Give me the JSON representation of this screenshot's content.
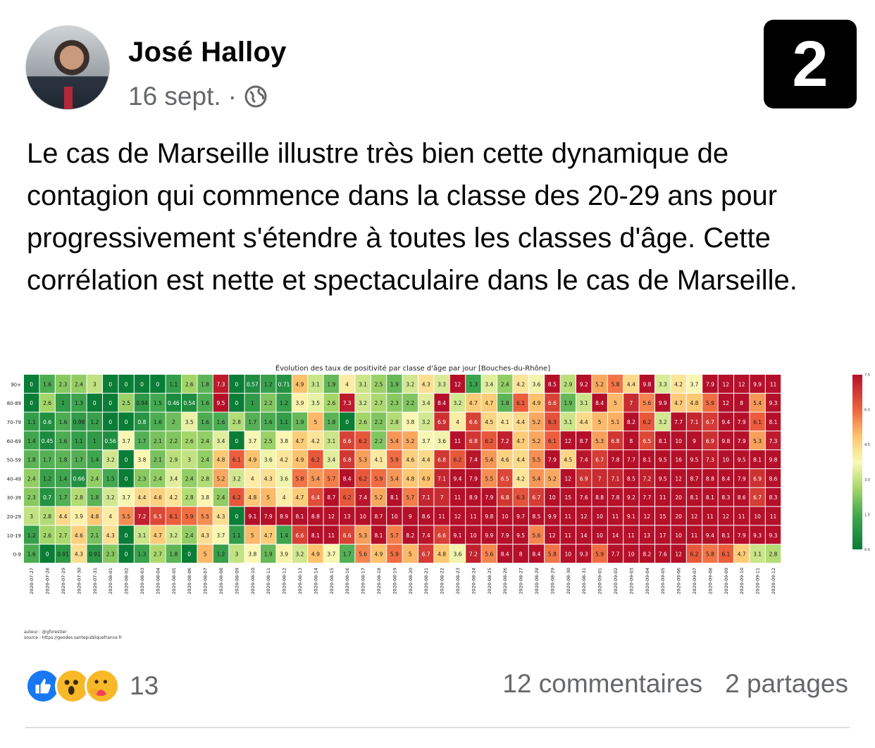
{
  "post": {
    "author": "José Halloy",
    "date": "16 sept.",
    "separator": "·",
    "audience_icon": "globe-icon",
    "badge_number": "2",
    "text": "Le cas de Marseille illustre très bien cette dynamique de contagion qui commence dans la classe des 20-29 ans pour progressivement s'étendre à toutes les classes d'âge. Cette corrélation est nette et spectaculaire dans le cas de Marseille."
  },
  "footer": {
    "reaction_icons": [
      "like-icon",
      "wow-icon",
      "care-icon"
    ],
    "reaction_count": "13",
    "comments": "12 commentaires",
    "shares": "2 partages"
  },
  "colors": {
    "low": "#0a7d36",
    "mid": "#fbf9b6",
    "high": "#b5102a",
    "text_secondary": "#65676b"
  },
  "chart_data": {
    "type": "heatmap",
    "title": "Évolution des taux de positivité par classe d'âge par jour [Bouches-du-Rhône]",
    "credits": [
      "auteur : @gforestier",
      "source : https://geodes.santepubliquefrance.fr"
    ],
    "rows": [
      "90+",
      "80-89",
      "70-79",
      "60-69",
      "50-59",
      "40-49",
      "30-39",
      "20-29",
      "10-19",
      "0-9"
    ],
    "columns": [
      "2020-07-27",
      "2020-07-28",
      "2020-07-29",
      "2020-07-30",
      "2020-07-31",
      "2020-08-01",
      "2020-08-02",
      "2020-08-03",
      "2020-08-04",
      "2020-08-05",
      "2020-08-06",
      "2020-08-07",
      "2020-08-08",
      "2020-08-09",
      "2020-08-10",
      "2020-08-11",
      "2020-08-12",
      "2020-08-13",
      "2020-08-14",
      "2020-08-15",
      "2020-08-16",
      "2020-08-17",
      "2020-08-18",
      "2020-08-19",
      "2020-08-20",
      "2020-08-21",
      "2020-08-22",
      "2020-08-23",
      "2020-08-24",
      "2020-08-25",
      "2020-08-26",
      "2020-08-27",
      "2020-08-28",
      "2020-08-29",
      "2020-08-30",
      "2020-08-31",
      "2020-09-01",
      "2020-09-02",
      "2020-09-03",
      "2020-09-04",
      "2020-09-05",
      "2020-09-06",
      "2020-09-07",
      "2020-09-08",
      "2020-09-09",
      "2020-09-10",
      "2020-09-11",
      "2020-09-12"
    ],
    "values": [
      [
        0,
        1.6,
        2.3,
        2.4,
        3,
        0,
        0,
        0,
        0,
        1.1,
        2.6,
        1.8,
        7.3,
        0,
        0.57,
        1.2,
        0.71,
        4.9,
        3.1,
        1.9,
        4,
        3.1,
        2.5,
        1.9,
        3.2,
        4.3,
        3.3,
        12,
        1.3,
        3.4,
        2.4,
        4.2,
        3.6,
        8.5,
        2.9,
        9.2,
        5.2,
        5.8,
        4.4,
        9.8,
        3.3,
        4.2,
        3.7,
        7.9,
        12,
        12,
        9.9,
        11
      ],
      [
        0,
        2.6,
        1,
        1.3,
        0,
        0,
        2.5,
        0.94,
        1.5,
        0.46,
        0.54,
        1.6,
        9.5,
        0,
        1,
        2.2,
        1.2,
        3.9,
        3.5,
        2.6,
        7.3,
        3.2,
        2.7,
        2.3,
        2.2,
        3.4,
        8.4,
        3.2,
        4.7,
        4.7,
        1.8,
        6.1,
        4.9,
        6.6,
        1.9,
        3.1,
        8.4,
        5,
        7,
        5.6,
        9.9,
        4.7,
        4.8,
        5.9,
        12,
        8,
        5.4,
        9.3
      ],
      [
        1.1,
        0.6,
        1.6,
        0.98,
        1.2,
        0,
        0,
        0.8,
        1.6,
        2,
        3.5,
        1.6,
        1.6,
        2.8,
        1.7,
        1.6,
        1.1,
        1.9,
        5,
        1.8,
        0,
        2.6,
        2.2,
        2.8,
        3.8,
        3.2,
        6.9,
        4,
        6.6,
        4.5,
        4.1,
        4.4,
        5.2,
        6.3,
        3.1,
        4.4,
        5,
        5.1,
        8.2,
        6.2,
        3.2,
        7.7,
        7.1,
        6.7,
        9.4,
        7.9,
        6.1,
        8.1
      ],
      [
        1.4,
        0.45,
        1.6,
        1.1,
        1,
        0.56,
        3.7,
        1.7,
        2.1,
        2.2,
        2.6,
        2.4,
        3.4,
        0,
        3.7,
        2.5,
        3.8,
        4.7,
        4.2,
        3.1,
        6.6,
        6.2,
        2.2,
        5.4,
        5.2,
        3.7,
        3.6,
        11,
        6.8,
        6.2,
        7.2,
        4.7,
        5.2,
        6.1,
        12,
        8.7,
        5.3,
        6.8,
        8,
        6.5,
        8.1,
        10,
        9,
        6.9,
        9.8,
        7.9,
        5.3,
        7.3
      ],
      [
        1.8,
        1.7,
        1.8,
        1.7,
        1.4,
        3.2,
        0,
        3.8,
        2.1,
        2.9,
        3,
        2.4,
        4.8,
        6.1,
        4.9,
        3.6,
        4.2,
        4.9,
        6.2,
        3.4,
        6.8,
        5.3,
        4.1,
        5.9,
        4.6,
        4.4,
        6.8,
        6.2,
        7.4,
        5.4,
        4.6,
        4.4,
        5.5,
        7.9,
        4.5,
        7.4,
        6.7,
        7.8,
        7.7,
        8.1,
        9.5,
        16,
        9.5,
        7.3,
        10,
        9.5,
        8.1,
        9.8
      ],
      [
        2.4,
        1.2,
        1.4,
        0.66,
        2.4,
        1.5,
        0,
        2.3,
        2.4,
        3.4,
        2.4,
        2.8,
        5.2,
        3.2,
        4,
        4.3,
        3.6,
        5.8,
        5.4,
        5.7,
        8.4,
        6.2,
        5.9,
        5.4,
        4.8,
        4.9,
        7.1,
        9.4,
        7.9,
        5.5,
        6.5,
        4.2,
        5.4,
        5.2,
        12,
        6.9,
        7,
        7.1,
        8.5,
        7.2,
        9.5,
        12,
        8.7,
        8.8,
        8.4,
        7.9,
        6.9,
        8.6
      ],
      [
        2.3,
        0.7,
        1.7,
        2.8,
        1.8,
        3.2,
        3.7,
        4.4,
        4.6,
        4.2,
        2.8,
        3.8,
        2.4,
        6.2,
        4.8,
        5,
        4,
        4.7,
        6.4,
        8.7,
        6.2,
        7.4,
        5.2,
        8.1,
        5.7,
        7.1,
        7,
        11,
        8.9,
        7.9,
        6.8,
        6.3,
        6.7,
        10,
        15,
        7.6,
        8.8,
        7.8,
        9.2,
        7.7,
        11,
        20,
        8.1,
        8.1,
        8.3,
        8.6,
        6.7,
        8.3
      ],
      [
        3,
        2.8,
        4.4,
        3.9,
        4.8,
        4,
        5.5,
        7.2,
        6.5,
        6.1,
        5.9,
        5.5,
        4.3,
        0,
        9.1,
        7.9,
        8.9,
        8.1,
        8.8,
        12,
        13,
        10,
        8.7,
        10,
        9,
        8.6,
        11,
        12,
        11,
        9.8,
        10,
        9.7,
        8.5,
        9.9,
        11,
        12,
        10,
        11,
        9.1,
        12,
        15,
        20,
        12,
        11,
        12,
        11,
        10,
        11
      ],
      [
        1.2,
        2.6,
        2.7,
        4.6,
        2.1,
        4.3,
        0,
        3.1,
        4.7,
        3.2,
        2.4,
        4.3,
        3.7,
        1.1,
        5,
        4.7,
        1.4,
        6.6,
        8.1,
        11,
        6.6,
        5.3,
        8.1,
        5.7,
        8.2,
        7.4,
        6.6,
        9.1,
        10,
        9.9,
        7.9,
        9.5,
        5.6,
        12,
        11,
        14,
        10,
        14,
        11,
        13,
        17,
        10,
        11,
        9.4,
        8.1,
        7.9,
        9.3,
        9.3
      ],
      [
        1.6,
        0,
        0.91,
        4.3,
        0.91,
        2.3,
        0,
        1.3,
        2.7,
        1.8,
        0,
        5,
        1.2,
        3,
        3.8,
        1.9,
        3.9,
        3.2,
        4.9,
        3.7,
        1.7,
        5.6,
        4.9,
        5.9,
        5,
        6.7,
        4.8,
        3.6,
        7.2,
        5.6,
        8.4,
        8,
        8.4,
        5.8,
        10,
        9.3,
        5.9,
        7.7,
        10,
        8.2,
        7.6,
        12,
        6.2,
        5.8,
        6.1,
        4.7,
        3.1,
        2.8
      ]
    ],
    "colorbar": {
      "min": 0,
      "max": 7.5,
      "ticks": [
        "7.5",
        "6.0",
        "4.5",
        "3.0",
        "1.5",
        "0.0"
      ]
    }
  }
}
